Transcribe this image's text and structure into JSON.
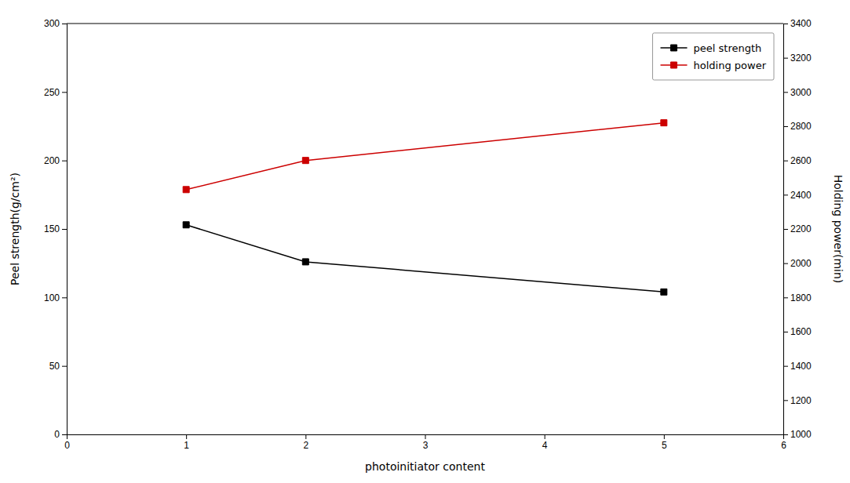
{
  "chart_data": {
    "type": "line",
    "xlabel": "photoinitiator content",
    "ylabel": "Peel strength(g/cm²)",
    "y2label": "Holding power(min)",
    "x": [
      1,
      2,
      5
    ],
    "series": [
      {
        "name": "peel strength",
        "color": "#000000",
        "marker": "square",
        "values": [
          153,
          126,
          104
        ]
      },
      {
        "name": "holding power",
        "color": "#cc0000",
        "marker": "square",
        "axis": "y2",
        "values": [
          2430,
          2600,
          2820
        ]
      }
    ],
    "xlim": [
      0,
      6
    ],
    "xticks": [
      0,
      1,
      2,
      3,
      4,
      5,
      6
    ],
    "ylim": [
      0,
      300
    ],
    "yticks": [
      0,
      50,
      100,
      150,
      200,
      250,
      300
    ],
    "y2lim": [
      1000,
      3400
    ],
    "y2ticks": [
      1000,
      1200,
      1400,
      1600,
      1800,
      2000,
      2200,
      2400,
      2600,
      2800,
      3000,
      3200,
      3400
    ],
    "grid": false,
    "legend": "upper right"
  }
}
